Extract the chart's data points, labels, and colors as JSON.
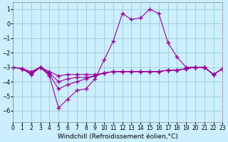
{
  "xlabel": "Windchill (Refroidissement éolien,°C)",
  "background_color": "#cceeff",
  "grid_color": "#99cccc",
  "line_color": "#990099",
  "x": [
    0,
    1,
    2,
    3,
    4,
    5,
    6,
    7,
    8,
    9,
    10,
    11,
    12,
    13,
    14,
    15,
    16,
    17,
    18,
    19,
    20,
    21,
    22,
    23
  ],
  "line1": [
    -3.0,
    -3.1,
    -3.5,
    -3.0,
    -3.6,
    -5.8,
    -5.2,
    -4.6,
    -4.5,
    -3.8,
    -2.5,
    -1.2,
    0.7,
    0.3,
    0.4,
    1.0,
    0.7,
    -1.3,
    -2.3,
    -3.0,
    -3.0,
    -3.0,
    -3.5,
    -3.1
  ],
  "line2": [
    -3.0,
    -3.1,
    -3.5,
    -3.0,
    -3.5,
    -4.5,
    -4.2,
    -4.0,
    -3.8,
    -3.6,
    -3.4,
    -3.3,
    -3.3,
    -3.3,
    -3.3,
    -3.3,
    -3.3,
    -3.2,
    -3.2,
    -3.1,
    -3.0,
    -3.0,
    -3.5,
    -3.1
  ],
  "line3": [
    -3.0,
    -3.1,
    -3.4,
    -3.0,
    -3.4,
    -4.0,
    -3.8,
    -3.7,
    -3.7,
    -3.6,
    -3.4,
    -3.3,
    -3.3,
    -3.3,
    -3.3,
    -3.3,
    -3.3,
    -3.2,
    -3.2,
    -3.1,
    -3.0,
    -3.0,
    -3.5,
    -3.1
  ],
  "line4": [
    -3.0,
    -3.1,
    -3.3,
    -3.0,
    -3.3,
    -3.6,
    -3.5,
    -3.5,
    -3.5,
    -3.5,
    -3.4,
    -3.3,
    -3.3,
    -3.3,
    -3.3,
    -3.3,
    -3.3,
    -3.2,
    -3.2,
    -3.1,
    -3.0,
    -3.0,
    -3.5,
    -3.1
  ],
  "ylim": [
    -6.8,
    1.5
  ],
  "xlim": [
    0,
    23
  ],
  "yticks": [
    -6,
    -5,
    -4,
    -3,
    -2,
    -1,
    0,
    1
  ],
  "xtick_labels": [
    "0",
    "1",
    "2",
    "3",
    "4",
    "5",
    "6",
    "7",
    "8",
    "9",
    "10",
    "11",
    "12",
    "13",
    "14",
    "15",
    "16",
    "17",
    "18",
    "19",
    "20",
    "21",
    "22",
    "23"
  ],
  "marker": "+",
  "markersize": 4,
  "linewidth": 0.8,
  "tick_font_size": 5.5,
  "xlabel_font_size": 6.5
}
